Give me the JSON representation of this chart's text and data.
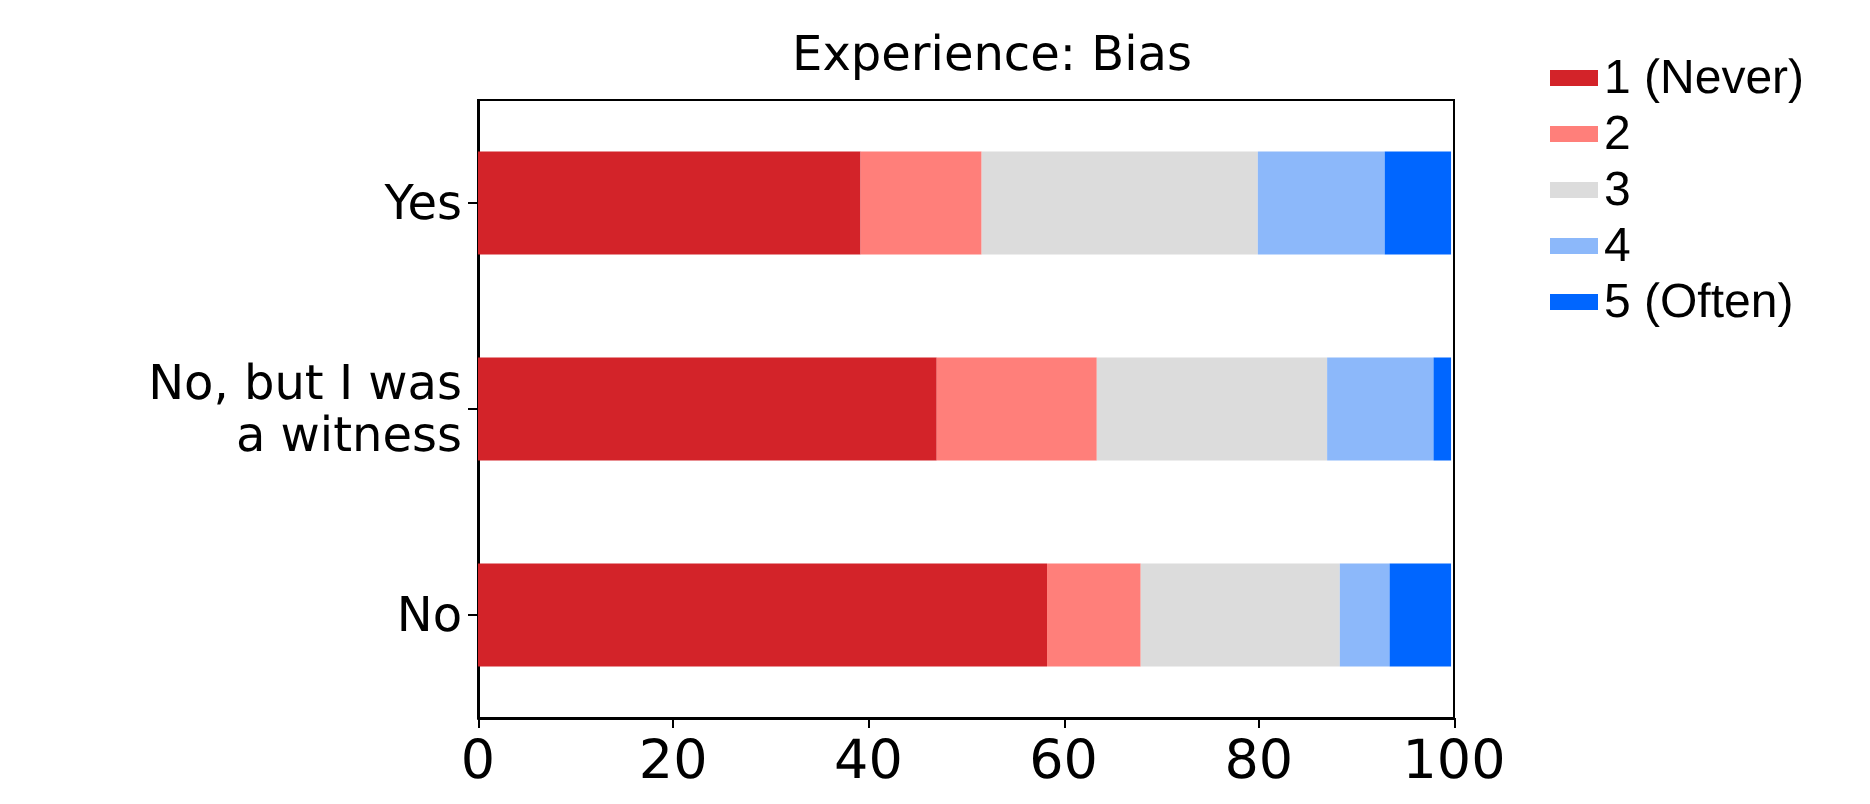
{
  "chart_data": {
    "type": "bar",
    "orientation": "horizontal",
    "stacked": true,
    "title": "Experience: Bias",
    "categories": [
      "Yes",
      "No, but I was\na witness",
      "No"
    ],
    "series": [
      {
        "name": "1 (Never)",
        "color": "#d32329",
        "values": [
          39.2,
          47.0,
          58.3
        ]
      },
      {
        "name": "2",
        "color": "#ff7f7a",
        "values": [
          12.4,
          16.4,
          9.6
        ]
      },
      {
        "name": "3",
        "color": "#dcdcdc",
        "values": [
          28.3,
          23.6,
          20.4
        ]
      },
      {
        "name": "4",
        "color": "#8cb8fa",
        "values": [
          13.0,
          10.9,
          5.1
        ]
      },
      {
        "name": "5 (Often)",
        "color": "#0066ff",
        "values": [
          6.8,
          1.8,
          6.3
        ]
      }
    ],
    "xlim": [
      0,
      100
    ],
    "xticks": [
      0,
      20,
      40,
      60,
      80,
      100
    ],
    "grid": false,
    "legend": "top right"
  }
}
